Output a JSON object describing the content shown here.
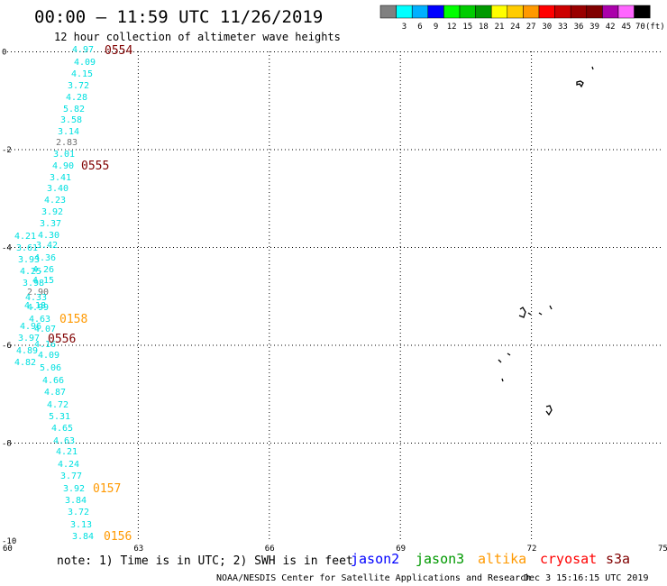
{
  "header": {
    "title": "00:00 – 11:59 UTC 11/26/2019",
    "subtitle": "12 hour collection of altimeter wave heights"
  },
  "legend": {
    "unit": "(ft)",
    "bins": [
      {
        "label": "",
        "color": "#808080"
      },
      {
        "label": "3",
        "color": "#00ffff"
      },
      {
        "label": "6",
        "color": "#00b0ff"
      },
      {
        "label": "9",
        "color": "#0000ff"
      },
      {
        "label": "12",
        "color": "#00ff00"
      },
      {
        "label": "15",
        "color": "#00cc00"
      },
      {
        "label": "18",
        "color": "#009900"
      },
      {
        "label": "21",
        "color": "#ffff00"
      },
      {
        "label": "24",
        "color": "#ffcc00"
      },
      {
        "label": "27",
        "color": "#ff9900"
      },
      {
        "label": "30",
        "color": "#ff0000"
      },
      {
        "label": "33",
        "color": "#cc0000"
      },
      {
        "label": "36",
        "color": "#990000"
      },
      {
        "label": "39",
        "color": "#800000"
      },
      {
        "label": "42",
        "color": "#aa00aa"
      },
      {
        "label": "45",
        "color": "#ff66ff"
      },
      {
        "label": "70",
        "color": "#000000"
      }
    ]
  },
  "axes": {
    "x_ticks": [
      "60",
      "63",
      "66",
      "69",
      "72",
      "75"
    ],
    "y_ticks": [
      "0",
      "-2",
      "-4",
      "-6",
      "-8",
      "-10"
    ]
  },
  "colors": {
    "cyan": "#00e0e0",
    "gray": "#707070",
    "jason2": "#0000ff",
    "jason3": "#009900",
    "altika": "#ff9900",
    "cryosat": "#ff0000",
    "s3a": "#800000",
    "time_jason3": "#800000",
    "time_altika": "#ff9900"
  },
  "chart_data": {
    "type": "scatter",
    "x_range": [
      60,
      75
    ],
    "y_range": [
      -10,
      0
    ],
    "track_a_values": [
      "4.97",
      "4.09",
      "4.15",
      "3.72",
      "4.28",
      "5.82",
      "3.58",
      "3.14",
      "2.83",
      "3.01",
      "4.90",
      "3.41",
      "3.40",
      "4.23",
      "3.92",
      "3.37",
      "4.30"
    ],
    "track_b_values": [
      "4.21",
      "3.61",
      "3.42",
      "4.36",
      "3.93",
      "4.26",
      "4.25",
      "4.15",
      "3.98",
      "2.90",
      "4.33",
      "4.18",
      "4.99",
      "4.63",
      "4.96",
      "4.07",
      "3.97",
      "4.16",
      "4.89",
      "4.09",
      "4.82"
    ],
    "track_c_values": [
      "5.06",
      "4.66",
      "4.87",
      "4.72",
      "5.31",
      "4.65",
      "4.63",
      "4.21",
      "4.24",
      "3.77",
      "3.92",
      "3.84",
      "3.72",
      "3.13",
      "3.84"
    ],
    "time_labels": [
      "0554",
      "0555",
      "0556",
      "0158",
      "0157",
      "0156"
    ]
  },
  "footer": {
    "note": "note: 1) Time is in UTC; 2) SWH is in feet",
    "satellites": [
      "jason2",
      "jason3",
      "altika",
      "cryosat",
      "s3a"
    ],
    "credit": "NOAA/NESDIS Center for Satellite Applications and Research",
    "timestamp": "Dec  3 15:16:15 UTC 2019"
  }
}
